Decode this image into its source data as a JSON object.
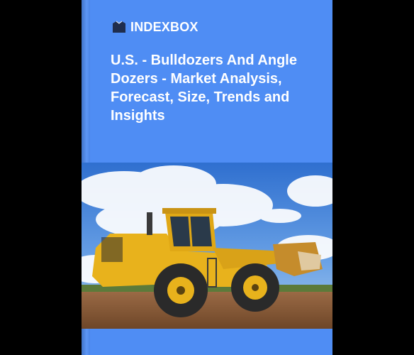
{
  "brand": {
    "name": "INDEXBOX"
  },
  "report": {
    "title": "U.S. - Bulldozers And Angle Dozers - Market Analysis, Forecast, Size, Trends and Insights"
  },
  "cover_image": {
    "subject": "wheel-loader-photo"
  },
  "colors": {
    "cover": "#4f8df4",
    "background": "#000000",
    "machine": "#e8b21c"
  }
}
